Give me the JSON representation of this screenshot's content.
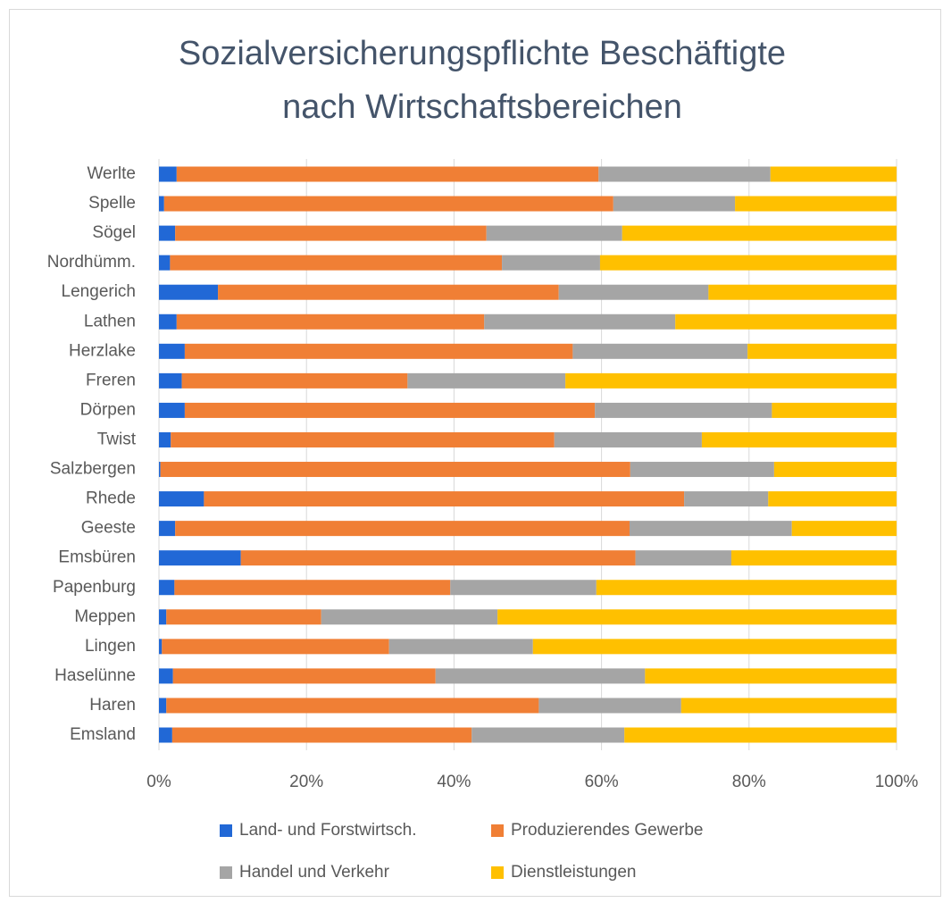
{
  "chart_data": {
    "type": "stacked_barh",
    "title": [
      "Sozialversicherungspflichte Beschäftigte",
      "nach Wirtschaftsbereichen"
    ],
    "categories": [
      "Werlte",
      "Spelle",
      "Sögel",
      "Nordhümm.",
      "Lengerich",
      "Lathen",
      "Herzlake",
      "Freren",
      "Dörpen",
      "Twist",
      "Salzbergen",
      "Rhede",
      "Geeste",
      "Emsbüren",
      "Papenburg",
      "Meppen",
      "Lingen",
      "Haselünne",
      "Haren",
      "Emsland"
    ],
    "series": [
      {
        "name": "Land- und Forstwirtsch.",
        "color": "#2168d6",
        "values": [
          2.4,
          0.7,
          2.2,
          1.5,
          8.0,
          2.4,
          3.5,
          3.1,
          3.5,
          1.6,
          0.2,
          6.1,
          2.2,
          11.1,
          2.1,
          1.0,
          0.4,
          1.9,
          1.0,
          1.8
        ]
      },
      {
        "name": "Produzierendes Gewerbe",
        "color": "#f07f35",
        "values": [
          57.2,
          60.9,
          42.2,
          45.0,
          46.2,
          41.7,
          52.6,
          30.6,
          55.6,
          52.0,
          63.7,
          65.1,
          61.6,
          53.5,
          37.4,
          21.0,
          30.8,
          35.6,
          50.5,
          40.6
        ]
      },
      {
        "name": "Handel und Verkehr",
        "color": "#a5a5a5",
        "values": [
          23.3,
          16.5,
          18.4,
          13.3,
          20.3,
          25.9,
          23.7,
          21.4,
          24.0,
          20.0,
          19.5,
          11.4,
          22.0,
          13.0,
          19.8,
          23.9,
          19.5,
          28.4,
          19.3,
          20.7
        ]
      },
      {
        "name": "Dienstleistungen",
        "color": "#ffc000",
        "values": [
          17.1,
          21.9,
          37.2,
          40.2,
          25.5,
          30.0,
          20.2,
          44.9,
          16.9,
          26.4,
          16.6,
          17.4,
          14.2,
          22.4,
          40.7,
          54.1,
          49.3,
          34.1,
          29.2,
          36.9
        ]
      }
    ],
    "xlim": [
      0,
      100
    ],
    "xticks": [
      {
        "value": 0,
        "label": "0%"
      },
      {
        "value": 20,
        "label": "20%"
      },
      {
        "value": 40,
        "label": "40%"
      },
      {
        "value": 60,
        "label": "60%"
      },
      {
        "value": 80,
        "label": "80%"
      },
      {
        "value": 100,
        "label": "100%"
      }
    ],
    "grid": true,
    "legend": "bottom"
  }
}
